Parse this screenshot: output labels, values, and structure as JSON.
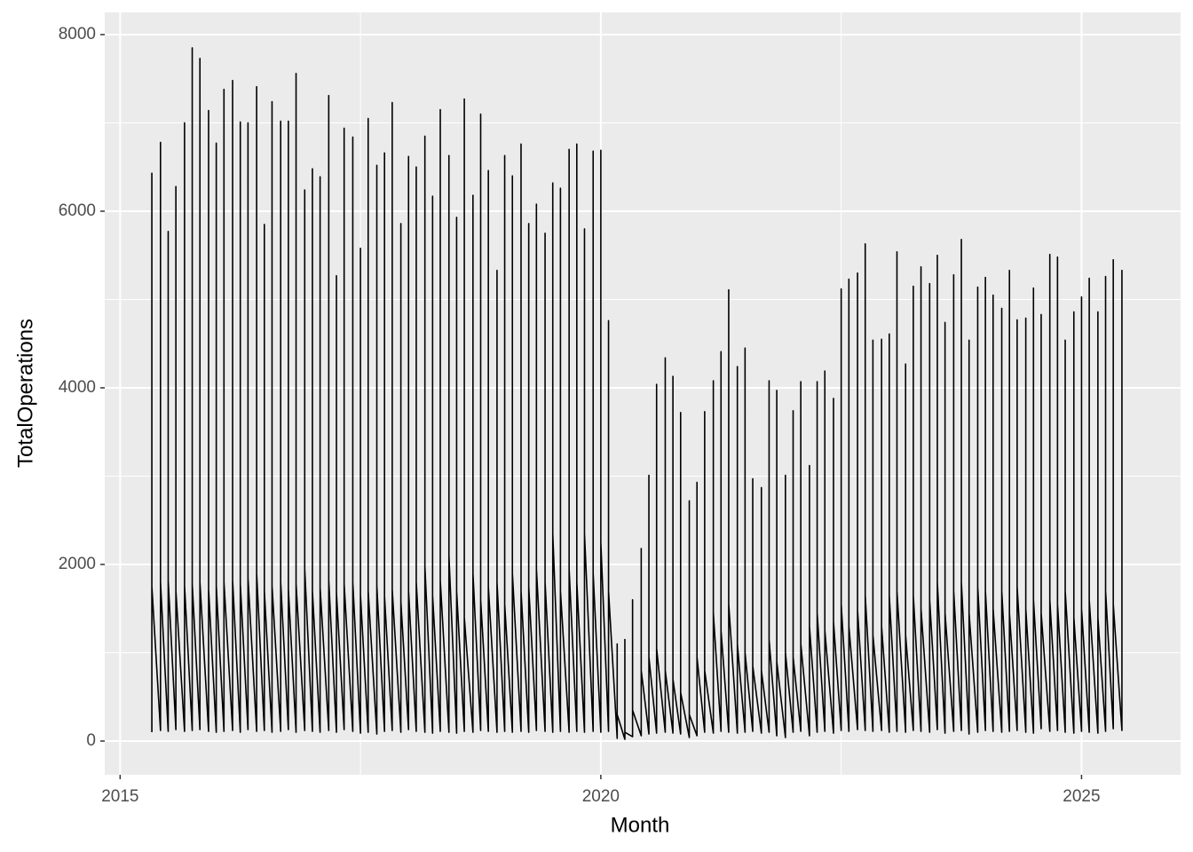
{
  "chart_data": {
    "type": "line",
    "x_label": "Month",
    "y_label": "TotalOperations",
    "color": "#000000",
    "grid": true,
    "xlim": [
      2014.84,
      2026.03
    ],
    "xticks": [
      2015,
      2020,
      2025
    ],
    "xminor": [
      2017.5,
      2022.5
    ],
    "ylim": [
      -382,
      8251
    ],
    "yticks": [
      0,
      2000,
      4000,
      6000,
      8000
    ],
    "yminor": [
      1000,
      3000,
      5000,
      7000
    ],
    "x": [
      2015.33,
      2015.33,
      2015.33,
      2015.42,
      2015.42,
      2015.42,
      2015.5,
      2015.5,
      2015.5,
      2015.58,
      2015.58,
      2015.58,
      2015.67,
      2015.67,
      2015.67,
      2015.75,
      2015.75,
      2015.75,
      2015.83,
      2015.83,
      2015.83,
      2015.92,
      2015.92,
      2015.92,
      2016,
      2016,
      2016,
      2016.08,
      2016.08,
      2016.08,
      2016.17,
      2016.17,
      2016.17,
      2016.25,
      2016.25,
      2016.25,
      2016.33,
      2016.33,
      2016.33,
      2016.42,
      2016.42,
      2016.42,
      2016.5,
      2016.5,
      2016.5,
      2016.58,
      2016.58,
      2016.58,
      2016.67,
      2016.67,
      2016.67,
      2016.75,
      2016.75,
      2016.75,
      2016.83,
      2016.83,
      2016.83,
      2016.92,
      2016.92,
      2016.92,
      2017,
      2017,
      2017,
      2017.08,
      2017.08,
      2017.08,
      2017.17,
      2017.17,
      2017.17,
      2017.25,
      2017.25,
      2017.25,
      2017.33,
      2017.33,
      2017.33,
      2017.42,
      2017.42,
      2017.42,
      2017.5,
      2017.5,
      2017.5,
      2017.58,
      2017.58,
      2017.58,
      2017.67,
      2017.67,
      2017.67,
      2017.75,
      2017.75,
      2017.75,
      2017.83,
      2017.83,
      2017.83,
      2017.92,
      2017.92,
      2017.92,
      2018,
      2018,
      2018,
      2018.08,
      2018.08,
      2018.08,
      2018.17,
      2018.17,
      2018.17,
      2018.25,
      2018.25,
      2018.25,
      2018.33,
      2018.33,
      2018.33,
      2018.42,
      2018.42,
      2018.42,
      2018.5,
      2018.5,
      2018.5,
      2018.58,
      2018.58,
      2018.58,
      2018.67,
      2018.67,
      2018.67,
      2018.75,
      2018.75,
      2018.75,
      2018.83,
      2018.83,
      2018.83,
      2018.92,
      2018.92,
      2018.92,
      2019,
      2019,
      2019,
      2019.08,
      2019.08,
      2019.08,
      2019.17,
      2019.17,
      2019.17,
      2019.25,
      2019.25,
      2019.25,
      2019.33,
      2019.33,
      2019.33,
      2019.42,
      2019.42,
      2019.42,
      2019.5,
      2019.5,
      2019.5,
      2019.58,
      2019.58,
      2019.58,
      2019.67,
      2019.67,
      2019.67,
      2019.75,
      2019.75,
      2019.75,
      2019.83,
      2019.83,
      2019.83,
      2019.92,
      2019.92,
      2019.92,
      2020,
      2020,
      2020,
      2020.08,
      2020.08,
      2020.08,
      2020.17,
      2020.17,
      2020.17,
      2020.25,
      2020.25,
      2020.25,
      2020.33,
      2020.33,
      2020.33,
      2020.42,
      2020.42,
      2020.42,
      2020.5,
      2020.5,
      2020.5,
      2020.58,
      2020.58,
      2020.58,
      2020.67,
      2020.67,
      2020.67,
      2020.75,
      2020.75,
      2020.75,
      2020.83,
      2020.83,
      2020.83,
      2020.92,
      2020.92,
      2020.92,
      2021,
      2021,
      2021,
      2021.08,
      2021.08,
      2021.08,
      2021.17,
      2021.17,
      2021.17,
      2021.25,
      2021.25,
      2021.25,
      2021.33,
      2021.33,
      2021.33,
      2021.42,
      2021.42,
      2021.42,
      2021.5,
      2021.5,
      2021.5,
      2021.58,
      2021.58,
      2021.58,
      2021.67,
      2021.67,
      2021.67,
      2021.75,
      2021.75,
      2021.75,
      2021.83,
      2021.83,
      2021.83,
      2021.92,
      2021.92,
      2021.92,
      2022,
      2022,
      2022,
      2022.08,
      2022.08,
      2022.08,
      2022.17,
      2022.17,
      2022.17,
      2022.25,
      2022.25,
      2022.25,
      2022.33,
      2022.33,
      2022.33,
      2022.42,
      2022.42,
      2022.42,
      2022.5,
      2022.5,
      2022.5,
      2022.58,
      2022.58,
      2022.58,
      2022.67,
      2022.67,
      2022.67,
      2022.75,
      2022.75,
      2022.75,
      2022.83,
      2022.83,
      2022.83,
      2022.92,
      2022.92,
      2022.92,
      2023,
      2023,
      2023,
      2023.08,
      2023.08,
      2023.08,
      2023.17,
      2023.17,
      2023.17,
      2023.25,
      2023.25,
      2023.25,
      2023.33,
      2023.33,
      2023.33,
      2023.42,
      2023.42,
      2023.42,
      2023.5,
      2023.5,
      2023.5,
      2023.58,
      2023.58,
      2023.58,
      2023.67,
      2023.67,
      2023.67,
      2023.75,
      2023.75,
      2023.75,
      2023.83,
      2023.83,
      2023.83,
      2023.92,
      2023.92,
      2023.92,
      2024,
      2024,
      2024,
      2024.08,
      2024.08,
      2024.08,
      2024.17,
      2024.17,
      2024.17,
      2024.25,
      2024.25,
      2024.25,
      2024.33,
      2024.33,
      2024.33,
      2024.42,
      2024.42,
      2024.42,
      2024.5,
      2024.5,
      2024.5,
      2024.58,
      2024.58,
      2024.58,
      2024.67,
      2024.67,
      2024.67,
      2024.75,
      2024.75,
      2024.75,
      2024.83,
      2024.83,
      2024.83,
      2024.92,
      2024.92,
      2024.92,
      2025,
      2025,
      2025,
      2025.08,
      2025.08,
      2025.08,
      2025.17,
      2025.17,
      2025.17,
      2025.25,
      2025.25,
      2025.25,
      2025.33,
      2025.33,
      2025.33,
      2025.42,
      2025.42,
      2025.42
    ],
    "values": [
      100,
      6430,
      1750,
      120,
      6780,
      1800,
      110,
      5770,
      1820,
      130,
      6280,
      1700,
      110,
      7000,
      1760,
      120,
      7850,
      1780,
      130,
      7730,
      1800,
      110,
      7140,
      1720,
      100,
      6770,
      1760,
      110,
      7380,
      1800,
      120,
      7480,
      1820,
      100,
      7010,
      1780,
      130,
      7000,
      1850,
      110,
      7410,
      1900,
      120,
      5850,
      1700,
      100,
      7240,
      1760,
      110,
      7020,
      1800,
      130,
      7020,
      1720,
      100,
      7560,
      1780,
      120,
      6240,
      1950,
      110,
      6480,
      1700,
      100,
      6390,
      1740,
      120,
      7310,
      1820,
      100,
      5270,
      1680,
      130,
      6940,
      1780,
      110,
      6840,
      1800,
      90,
      5580,
      1650,
      100,
      7050,
      1700,
      80,
      6520,
      1760,
      110,
      6660,
      1640,
      120,
      7230,
      1720,
      100,
      5860,
      1580,
      130,
      6620,
      1700,
      110,
      6500,
      1800,
      100,
      6850,
      1980,
      90,
      6170,
      1650,
      110,
      7150,
      1820,
      100,
      6630,
      2100,
      90,
      5930,
      1700,
      110,
      7270,
      1400,
      100,
      6180,
      1900,
      120,
      7100,
      1600,
      110,
      6460,
      1750,
      100,
      5330,
      1800,
      110,
      6630,
      1550,
      100,
      6400,
      1900,
      110,
      6760,
      1700,
      100,
      5860,
      1750,
      120,
      6080,
      1950,
      110,
      5750,
      1800,
      100,
      6320,
      2350,
      110,
      6260,
      1700,
      100,
      6700,
      1950,
      110,
      6760,
      1800,
      100,
      5800,
      2350,
      110,
      6680,
      1900,
      100,
      6690,
      2250,
      110,
      4760,
      1700,
      30,
      1100,
      300,
      20,
      1150,
      100,
      50,
      1600,
      350,
      60,
      2180,
      800,
      80,
      3010,
      950,
      90,
      4040,
      1050,
      100,
      4340,
      800,
      90,
      4130,
      700,
      80,
      3720,
      550,
      40,
      2720,
      300,
      60,
      2930,
      950,
      100,
      3730,
      800,
      90,
      4080,
      1450,
      110,
      4410,
      1250,
      100,
      5110,
      1550,
      90,
      4240,
      1100,
      100,
      4450,
      1000,
      110,
      2970,
      850,
      90,
      2870,
      800,
      100,
      4080,
      1150,
      60,
      3970,
      900,
      40,
      3010,
      1000,
      100,
      3740,
      950,
      110,
      4070,
      1100,
      60,
      3120,
      1300,
      100,
      4070,
      1450,
      110,
      4190,
      1250,
      90,
      3880,
      1350,
      120,
      5120,
      1550,
      110,
      5230,
      1300,
      130,
      5300,
      1480,
      120,
      5630,
      1650,
      110,
      4540,
      1200,
      120,
      4550,
      1300,
      100,
      4610,
      1650,
      110,
      5540,
      1700,
      100,
      4270,
      1200,
      120,
      5150,
      1650,
      110,
      5370,
      1500,
      100,
      5180,
      1600,
      130,
      5500,
      1800,
      90,
      4740,
      1450,
      110,
      5280,
      1700,
      120,
      5680,
      1800,
      80,
      4540,
      1450,
      100,
      5140,
      1750,
      120,
      5250,
      1700,
      110,
      5050,
      1500,
      100,
      4900,
      1700,
      110,
      5330,
      1450,
      120,
      4770,
      1750,
      100,
      4790,
      1500,
      90,
      5130,
      1600,
      140,
      4830,
      1450,
      110,
      5510,
      1600,
      120,
      5480,
      1550,
      100,
      4540,
      1700,
      90,
      4860,
      1400,
      110,
      5030,
      1500,
      100,
      5240,
      1600,
      90,
      4860,
      1400,
      110,
      5260,
      1700,
      140,
      5450,
      1550,
      120,
      5330,
      1400
    ]
  }
}
